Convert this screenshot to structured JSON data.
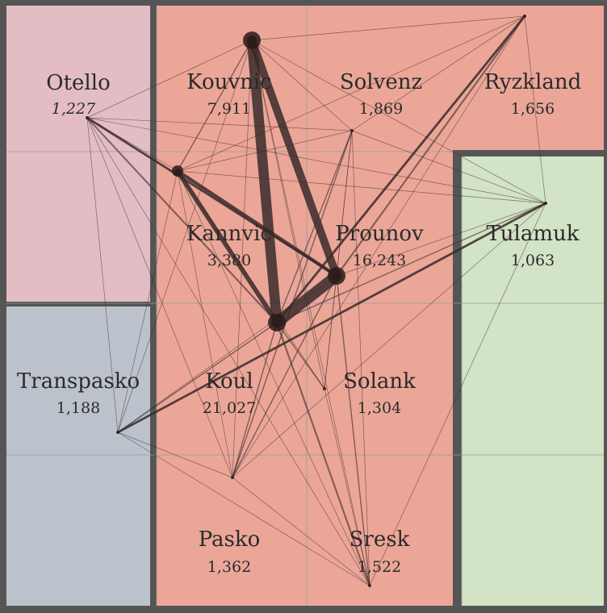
{
  "colors": {
    "border": "#555555",
    "grid": "#9a9a9a",
    "edge": "#3a2a2a",
    "node": "#2a1a1a",
    "region_pink": "#e3bdc3",
    "region_salmon": "#eba698",
    "region_slate": "#bcc2cc",
    "region_green": "#d2e3c6"
  },
  "regions": [
    {
      "id": "Otello",
      "name": "Otello",
      "value": "1,227",
      "italic": true,
      "color": "region_pink"
    },
    {
      "id": "Transpasko",
      "name": "Transpasko",
      "value": "1,188",
      "color": "region_slate"
    },
    {
      "id": "Tulamuk",
      "name": "Tulamuk",
      "value": "1,063",
      "color": "region_green"
    },
    {
      "id": "Kouvnic",
      "name": "Kouvnic",
      "value": "7,911",
      "color": "region_salmon"
    },
    {
      "id": "Solvenz",
      "name": "Solvenz",
      "value": "1,869",
      "color": "region_salmon"
    },
    {
      "id": "Ryzkland",
      "name": "Ryzkland",
      "value": "1,656",
      "color": "region_salmon"
    },
    {
      "id": "Kannvic",
      "name": "Kannvic",
      "value": "3,380",
      "color": "region_salmon"
    },
    {
      "id": "Prounov",
      "name": "Prounov",
      "value": "16,243",
      "color": "region_salmon"
    },
    {
      "id": "Koul",
      "name": "Koul",
      "value": "21,027",
      "color": "region_salmon"
    },
    {
      "id": "Solank",
      "name": "Solank",
      "value": "1,304",
      "color": "region_salmon"
    },
    {
      "id": "Pasko",
      "name": "Pasko",
      "value": "1,362",
      "color": "region_salmon"
    },
    {
      "id": "Sresk",
      "name": "Sresk",
      "value": "1,522",
      "color": "region_salmon"
    }
  ],
  "links": [
    {
      "a": "Koul",
      "b": "Prounov",
      "weight": 10
    },
    {
      "a": "Koul",
      "b": "Kouvnic",
      "weight": 9
    },
    {
      "a": "Kouvnic",
      "b": "Prounov",
      "weight": 7
    },
    {
      "a": "Koul",
      "b": "Kannvic",
      "weight": 4
    },
    {
      "a": "Kannvic",
      "b": "Prounov",
      "weight": 3
    },
    {
      "a": "Otello",
      "b": "Prounov",
      "weight": 2
    },
    {
      "a": "Transpasko",
      "b": "Tulamuk",
      "weight": 2
    },
    {
      "a": "Koul",
      "b": "Ryzkland",
      "weight": 2
    },
    {
      "a": "Prounov",
      "b": "Ryzkland",
      "weight": 1.5
    },
    {
      "a": "Koul",
      "b": "Sresk",
      "weight": 1.5
    },
    {
      "a": "Otello",
      "b": "Koul",
      "weight": 1.5
    },
    {
      "a": "Koul",
      "b": "Solvenz",
      "weight": 1
    },
    {
      "a": "Kouvnic",
      "b": "Kannvic",
      "weight": 1
    },
    {
      "a": "Prounov",
      "b": "Sresk",
      "weight": 1
    },
    {
      "a": "Koul",
      "b": "Solank",
      "weight": 1
    },
    {
      "a": "Koul",
      "b": "Pasko",
      "weight": 1
    },
    {
      "a": "Solvenz",
      "b": "Pasko",
      "weight": 1
    },
    {
      "a": "Prounov",
      "b": "Pasko",
      "weight": 1
    },
    {
      "a": "Transpasko",
      "b": "Koul",
      "weight": 1
    },
    {
      "a": "Koul",
      "b": "Tulamuk",
      "weight": 1
    },
    {
      "a": "Kouvnic",
      "b": "Ryzkland",
      "weight": 0.5
    },
    {
      "a": "Otello",
      "b": "Kouvnic",
      "weight": 0.5
    },
    {
      "a": "Otello",
      "b": "Solvenz",
      "weight": 0.5
    },
    {
      "a": "Otello",
      "b": "Kannvic",
      "weight": 0.5
    },
    {
      "a": "Otello",
      "b": "Tulamuk",
      "weight": 0.5
    },
    {
      "a": "Otello",
      "b": "Transpasko",
      "weight": 0.5
    },
    {
      "a": "Otello",
      "b": "Pasko",
      "weight": 0.5
    },
    {
      "a": "Otello",
      "b": "Sresk",
      "weight": 0.5
    },
    {
      "a": "Kouvnic",
      "b": "Solvenz",
      "weight": 0.5
    },
    {
      "a": "Kouvnic",
      "b": "Tulamuk",
      "weight": 0.5
    },
    {
      "a": "Kouvnic",
      "b": "Pasko",
      "weight": 0.5
    },
    {
      "a": "Kouvnic",
      "b": "Transpasko",
      "weight": 0.5
    },
    {
      "a": "Kouvnic",
      "b": "Sresk",
      "weight": 0.5
    },
    {
      "a": "Kouvnic",
      "b": "Solank",
      "weight": 0.5
    },
    {
      "a": "Solvenz",
      "b": "Ryzkland",
      "weight": 0.5
    },
    {
      "a": "Solvenz",
      "b": "Tulamuk",
      "weight": 0.5
    },
    {
      "a": "Solvenz",
      "b": "Kannvic",
      "weight": 0.5
    },
    {
      "a": "Solvenz",
      "b": "Prounov",
      "weight": 0.5
    },
    {
      "a": "Solvenz",
      "b": "Sresk",
      "weight": 0.5
    },
    {
      "a": "Solvenz",
      "b": "Solank",
      "weight": 0.5
    },
    {
      "a": "Ryzkland",
      "b": "Tulamuk",
      "weight": 0.5
    },
    {
      "a": "Ryzkland",
      "b": "Kannvic",
      "weight": 0.5
    },
    {
      "a": "Ryzkland",
      "b": "Pasko",
      "weight": 0.5
    },
    {
      "a": "Kannvic",
      "b": "Tulamuk",
      "weight": 0.5
    },
    {
      "a": "Kannvic",
      "b": "Pasko",
      "weight": 0.5
    },
    {
      "a": "Kannvic",
      "b": "Sresk",
      "weight": 0.5
    },
    {
      "a": "Kannvic",
      "b": "Solank",
      "weight": 0.5
    },
    {
      "a": "Kannvic",
      "b": "Transpasko",
      "weight": 0.5
    },
    {
      "a": "Prounov",
      "b": "Tulamuk",
      "weight": 0.5
    },
    {
      "a": "Prounov",
      "b": "Transpasko",
      "weight": 0.5
    },
    {
      "a": "Prounov",
      "b": "Solank",
      "weight": 0.5
    },
    {
      "a": "Tulamuk",
      "b": "Sresk",
      "weight": 0.5
    },
    {
      "a": "Tulamuk",
      "b": "Pasko",
      "weight": 0.5
    },
    {
      "a": "Transpasko",
      "b": "Sresk",
      "weight": 0.5
    },
    {
      "a": "Transpasko",
      "b": "Pasko",
      "weight": 0.5
    },
    {
      "a": "Pasko",
      "b": "Sresk",
      "weight": 0.5
    },
    {
      "a": "Solank",
      "b": "Sresk",
      "weight": 0.5
    }
  ]
}
